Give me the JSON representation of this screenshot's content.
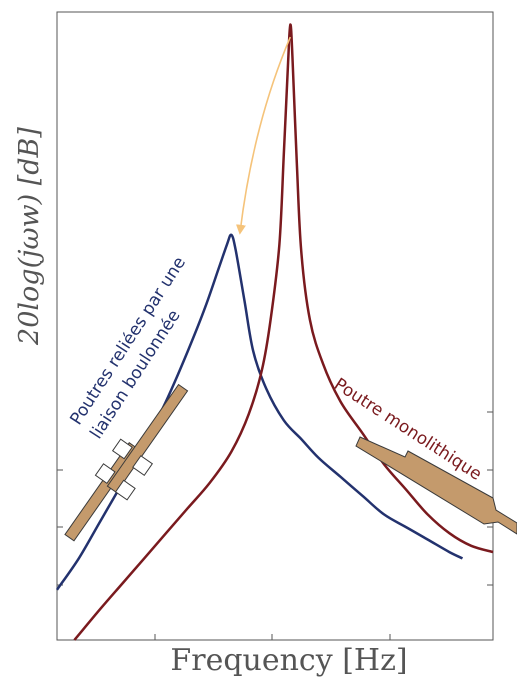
{
  "chart_data": {
    "type": "line",
    "title": "",
    "xlabel": "Frequency [Hz]",
    "ylabel": "20log(jωw) [dB]",
    "xlim": [
      0,
      1
    ],
    "ylim": [
      0,
      1
    ],
    "grid": false,
    "x_tick_labels": [],
    "y_tick_labels": [],
    "series": [
      {
        "name": "Poutres reliées par une liaison boulonnée",
        "color": "#23326e",
        "x": [
          0.0,
          0.05,
          0.1,
          0.15,
          0.2,
          0.25,
          0.3,
          0.34,
          0.37,
          0.39,
          0.4,
          0.41,
          0.43,
          0.45,
          0.48,
          0.52,
          0.56,
          0.6,
          0.65,
          0.7,
          0.75,
          0.8,
          0.85,
          0.9,
          0.93
        ],
        "y": [
          0.08,
          0.13,
          0.19,
          0.25,
          0.31,
          0.38,
          0.46,
          0.53,
          0.59,
          0.63,
          0.645,
          0.62,
          0.54,
          0.46,
          0.4,
          0.35,
          0.32,
          0.29,
          0.26,
          0.23,
          0.2,
          0.18,
          0.16,
          0.14,
          0.13
        ]
      },
      {
        "name": "Poutre monolithique",
        "color": "#7a1a1e",
        "x": [
          0.04,
          0.1,
          0.15,
          0.2,
          0.25,
          0.3,
          0.35,
          0.4,
          0.44,
          0.47,
          0.49,
          0.51,
          0.52,
          0.53,
          0.535,
          0.54,
          0.55,
          0.56,
          0.58,
          0.61,
          0.65,
          0.7,
          0.75,
          0.8,
          0.85,
          0.9,
          0.95,
          1.0
        ],
        "y": [
          0.0,
          0.05,
          0.09,
          0.13,
          0.17,
          0.21,
          0.25,
          0.3,
          0.36,
          0.43,
          0.51,
          0.63,
          0.77,
          0.92,
          0.98,
          0.93,
          0.76,
          0.62,
          0.51,
          0.44,
          0.38,
          0.33,
          0.28,
          0.24,
          0.2,
          0.17,
          0.15,
          0.14
        ]
      }
    ],
    "annotations": [
      {
        "text": "Poutres reliées par une",
        "color": "#23326e"
      },
      {
        "text": "liaison boulonnée",
        "color": "#23326e"
      },
      {
        "text": "Poutre monolithique",
        "color": "#7a1a1e"
      }
    ],
    "arrow": {
      "from": [
        0.535,
        0.96
      ],
      "to": [
        0.42,
        0.65
      ],
      "color": "#f5c37a"
    },
    "colors": {
      "beam": "#c49a6c",
      "beam_stroke": "#3a3a3a",
      "axis": "#555555"
    }
  }
}
